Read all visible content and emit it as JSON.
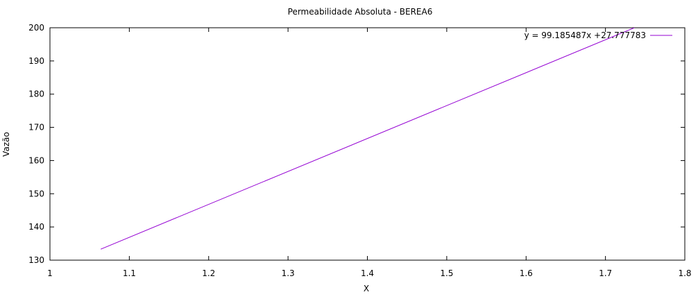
{
  "chart_data": {
    "type": "line",
    "title": "Permeabilidade Absoluta - BEREA6",
    "xlabel": "X",
    "ylabel": "Vazão",
    "xlim": [
      1,
      1.8
    ],
    "ylim": [
      130,
      200
    ],
    "x_ticks": [
      1,
      1.1,
      1.2,
      1.3,
      1.4,
      1.5,
      1.6,
      1.7,
      1.8
    ],
    "x_tick_labels": [
      "1",
      "1.1",
      "1.2",
      "1.3",
      "1.4",
      "1.5",
      "1.6",
      "1.7",
      "1.8"
    ],
    "y_ticks": [
      130,
      140,
      150,
      160,
      170,
      180,
      190,
      200
    ],
    "y_tick_labels": [
      "130",
      "140",
      "150",
      "160",
      "170",
      "180",
      "190",
      "200"
    ],
    "grid": false,
    "legend_position": "top-right",
    "series": [
      {
        "name": "y = 99.185487x +27.777783",
        "color": "#9400d3",
        "x": [
          1.064,
          1.7364
        ],
        "y": [
          133.31,
          200
        ]
      }
    ]
  }
}
